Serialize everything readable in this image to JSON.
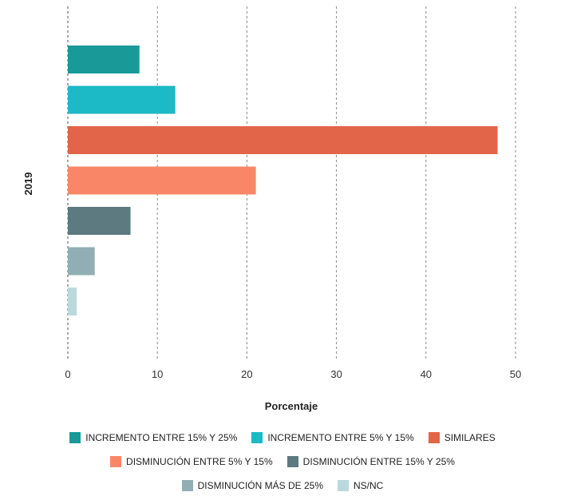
{
  "chart_data": {
    "type": "bar",
    "orientation": "horizontal",
    "title": "",
    "xlabel": "Porcentaje",
    "ylabel": "2019",
    "xlim": [
      0,
      50
    ],
    "xticks": [
      0,
      10,
      20,
      30,
      40,
      50
    ],
    "grid": "vertical dashed",
    "legend_position": "bottom",
    "series": [
      {
        "name": "INCREMENTO ENTRE 15% Y 25%",
        "value": 8,
        "color": "#1a9999"
      },
      {
        "name": "INCREMENTO ENTRE 5% Y 15%",
        "value": 12,
        "color": "#1cb9c6"
      },
      {
        "name": "SIMILARES",
        "value": 48,
        "color": "#e2654a"
      },
      {
        "name": "DISMINUCIÓN ENTRE 5% Y 15%",
        "value": 21,
        "color": "#f98767"
      },
      {
        "name": "DISMINUCIÓN ENTRE 15% Y 25%",
        "value": 7,
        "color": "#5c7a7f"
      },
      {
        "name": "DISMINUCIÓN MÁS DE 25%",
        "value": 3,
        "color": "#90aeb3"
      },
      {
        "name": "NS/NC",
        "value": 1,
        "color": "#bad9dd"
      }
    ]
  }
}
